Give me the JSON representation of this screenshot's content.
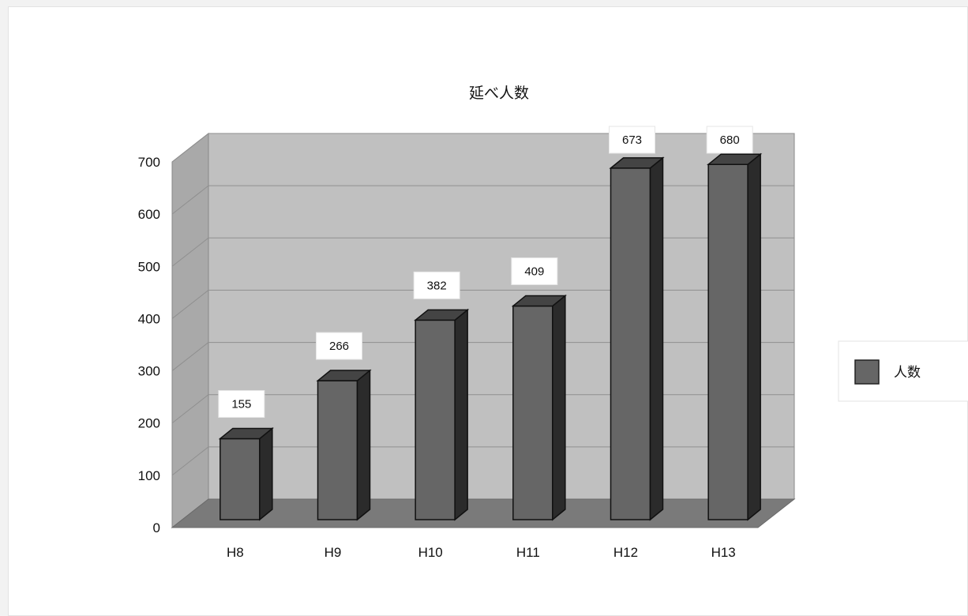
{
  "chart_data": {
    "type": "bar",
    "title": "延べ人数",
    "categories": [
      "H8",
      "H9",
      "H10",
      "H11",
      "H12",
      "H13"
    ],
    "series": [
      {
        "name": "人数",
        "values": [
          155,
          266,
          382,
          409,
          673,
          680
        ]
      }
    ],
    "yticks": [
      "0",
      "100",
      "200",
      "300",
      "400",
      "500",
      "600",
      "700"
    ],
    "ylim": [
      0,
      700
    ],
    "grid": true,
    "legend": "right",
    "data_labels": [
      "155",
      "266",
      "382",
      "409",
      "673",
      "680"
    ],
    "colors": {
      "bar_front": "#666666",
      "bar_side": "#2b2b2b",
      "bar_top": "#444444",
      "wall": "#c0c0c0",
      "floor": "#7a7a7a"
    }
  }
}
